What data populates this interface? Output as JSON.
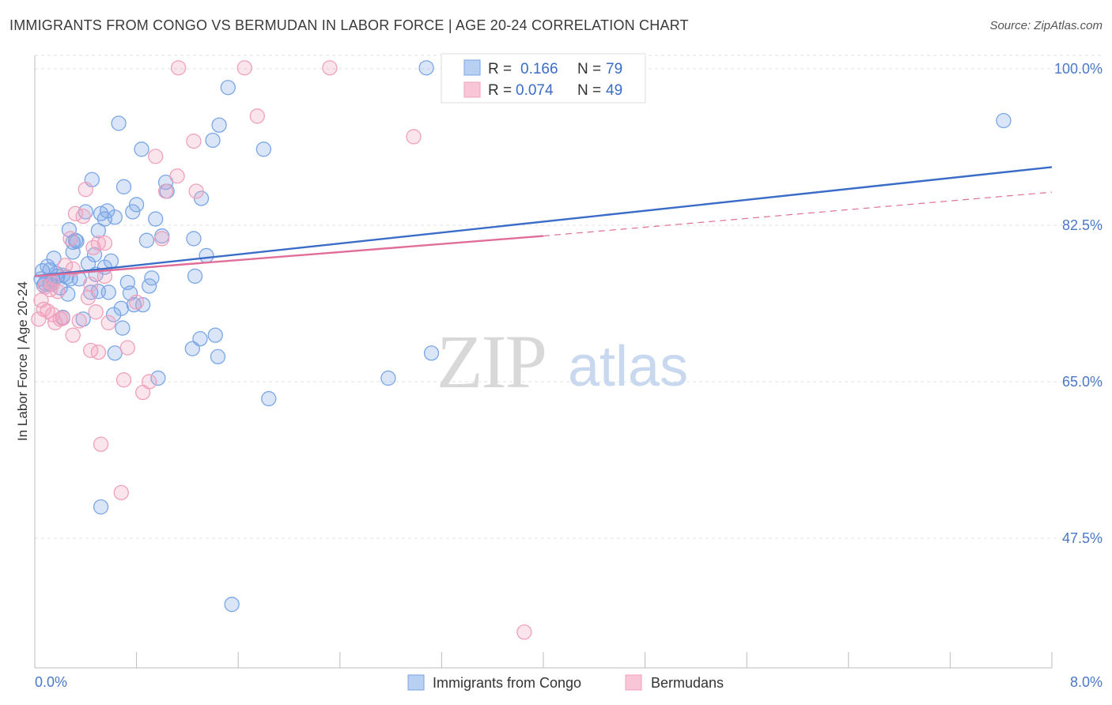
{
  "title": "IMMIGRANTS FROM CONGO VS BERMUDAN IN LABOR FORCE | AGE 20-24 CORRELATION CHART",
  "source": "Source: ZipAtlas.com",
  "watermark": {
    "zip": "ZIP",
    "atlas": "atlas"
  },
  "chart_data": {
    "type": "scatter",
    "title": "IMMIGRANTS FROM CONGO VS BERMUDAN IN LABOR FORCE | AGE 20-24 CORRELATION CHART",
    "xlabel": "",
    "ylabel": "In Labor Force | Age 20-24",
    "xlim": [
      0,
      8
    ],
    "ylim": [
      33,
      101.5
    ],
    "x_tick_labels": [
      "0.0%",
      "8.0%"
    ],
    "y_ticks": [
      47.5,
      65.0,
      82.5,
      100.0
    ],
    "y_tick_labels": [
      "47.5%",
      "65.0%",
      "82.5%",
      "100.0%"
    ],
    "grid": true,
    "legend": {
      "placement": "top-center",
      "entries": [
        {
          "r_label": "R =",
          "r_value": "0.166",
          "n_label": "N =",
          "n_value": "79"
        },
        {
          "r_label": "R =",
          "r_value": "0.074",
          "n_label": "N =",
          "n_value": "49"
        }
      ]
    },
    "series": [
      {
        "name": "Immigrants from Congo",
        "color": "#7aa6e6",
        "line_color": "#3a6cc8",
        "trend": {
          "x": [
            0,
            8
          ],
          "y": [
            76.8,
            89.0
          ],
          "style": "solid"
        },
        "points": [
          [
            0.05,
            76.5
          ],
          [
            0.06,
            77.4
          ],
          [
            0.07,
            75.8
          ],
          [
            0.08,
            76.0
          ],
          [
            0.1,
            77.9
          ],
          [
            0.12,
            77.5
          ],
          [
            0.14,
            76.4
          ],
          [
            0.15,
            78.8
          ],
          [
            0.17,
            77.1
          ],
          [
            0.18,
            76.8
          ],
          [
            0.2,
            75.5
          ],
          [
            0.22,
            72.2
          ],
          [
            0.25,
            76.7
          ],
          [
            0.26,
            74.8
          ],
          [
            0.27,
            82.0
          ],
          [
            0.28,
            76.5
          ],
          [
            0.3,
            79.5
          ],
          [
            0.32,
            80.8
          ],
          [
            0.33,
            80.7
          ],
          [
            0.35,
            76.5
          ],
          [
            0.38,
            72.0
          ],
          [
            0.4,
            84.0
          ],
          [
            0.42,
            78.2
          ],
          [
            0.44,
            75.0
          ],
          [
            0.45,
            87.6
          ],
          [
            0.47,
            79.2
          ],
          [
            0.48,
            77.0
          ],
          [
            0.5,
            75.1
          ],
          [
            0.5,
            81.9
          ],
          [
            0.52,
            83.8
          ],
          [
            0.55,
            83.2
          ],
          [
            0.57,
            84.1
          ],
          [
            0.58,
            75.0
          ],
          [
            0.6,
            78.5
          ],
          [
            0.62,
            72.5
          ],
          [
            0.63,
            68.2
          ],
          [
            0.66,
            93.9
          ],
          [
            0.68,
            73.2
          ],
          [
            0.69,
            71.0
          ],
          [
            0.7,
            86.8
          ],
          [
            0.73,
            76.1
          ],
          [
            0.75,
            74.9
          ],
          [
            0.77,
            84.0
          ],
          [
            0.78,
            73.6
          ],
          [
            0.8,
            84.8
          ],
          [
            0.84,
            91.0
          ],
          [
            0.85,
            73.6
          ],
          [
            0.88,
            80.8
          ],
          [
            0.9,
            75.7
          ],
          [
            0.92,
            76.6
          ],
          [
            0.95,
            83.2
          ],
          [
            0.97,
            65.4
          ],
          [
            1.0,
            81.3
          ],
          [
            1.03,
            87.3
          ],
          [
            1.04,
            86.3
          ],
          [
            1.24,
            68.7
          ],
          [
            1.25,
            81.0
          ],
          [
            1.26,
            76.8
          ],
          [
            1.3,
            69.8
          ],
          [
            1.31,
            85.5
          ],
          [
            1.35,
            79.1
          ],
          [
            1.4,
            92.0
          ],
          [
            1.42,
            70.2
          ],
          [
            1.44,
            67.8
          ],
          [
            1.45,
            93.7
          ],
          [
            1.52,
            97.9
          ],
          [
            1.8,
            91.0
          ],
          [
            1.84,
            63.1
          ],
          [
            2.78,
            65.4
          ],
          [
            3.08,
            100.1
          ],
          [
            3.12,
            68.2
          ],
          [
            1.55,
            40.1
          ],
          [
            0.52,
            51.0
          ],
          [
            7.62,
            94.2
          ],
          [
            0.3,
            80.6
          ],
          [
            0.63,
            83.4
          ],
          [
            0.55,
            77.8
          ],
          [
            0.22,
            76.9
          ],
          [
            0.12,
            75.9
          ]
        ]
      },
      {
        "name": "Bermudans",
        "color": "#f0a0bc",
        "line_color": "#e06e98",
        "trend": {
          "x": [
            0,
            4.0
          ],
          "y": [
            76.8,
            81.3
          ],
          "style": "solid"
        },
        "trend_ext": {
          "x": [
            4.0,
            8
          ],
          "y": [
            81.3,
            86.2
          ],
          "style": "dashed"
        },
        "points": [
          [
            0.03,
            72.0
          ],
          [
            0.05,
            74.1
          ],
          [
            0.07,
            73.1
          ],
          [
            0.08,
            75.6
          ],
          [
            0.1,
            72.9
          ],
          [
            0.12,
            75.3
          ],
          [
            0.14,
            72.5
          ],
          [
            0.16,
            71.6
          ],
          [
            0.18,
            75.1
          ],
          [
            0.2,
            72.0
          ],
          [
            0.22,
            72.1
          ],
          [
            0.24,
            78.0
          ],
          [
            0.28,
            81.0
          ],
          [
            0.3,
            70.2
          ],
          [
            0.32,
            83.8
          ],
          [
            0.35,
            71.8
          ],
          [
            0.38,
            83.5
          ],
          [
            0.4,
            86.5
          ],
          [
            0.42,
            74.4
          ],
          [
            0.44,
            68.5
          ],
          [
            0.46,
            80.0
          ],
          [
            0.48,
            72.8
          ],
          [
            0.5,
            68.3
          ],
          [
            0.5,
            80.5
          ],
          [
            0.52,
            58.0
          ],
          [
            0.55,
            80.5
          ],
          [
            0.55,
            76.8
          ],
          [
            0.58,
            71.6
          ],
          [
            0.68,
            52.6
          ],
          [
            0.7,
            65.2
          ],
          [
            0.73,
            68.8
          ],
          [
            0.8,
            73.9
          ],
          [
            0.85,
            63.8
          ],
          [
            0.9,
            65.0
          ],
          [
            0.95,
            90.2
          ],
          [
            1.0,
            81.0
          ],
          [
            1.03,
            86.3
          ],
          [
            1.12,
            88.0
          ],
          [
            1.13,
            100.1
          ],
          [
            1.25,
            91.9
          ],
          [
            1.27,
            86.3
          ],
          [
            1.65,
            100.1
          ],
          [
            1.75,
            94.7
          ],
          [
            2.32,
            100.1
          ],
          [
            2.98,
            92.4
          ],
          [
            3.85,
            37.0
          ],
          [
            0.14,
            76.0
          ],
          [
            0.3,
            77.6
          ],
          [
            0.44,
            75.9
          ]
        ]
      }
    ]
  }
}
